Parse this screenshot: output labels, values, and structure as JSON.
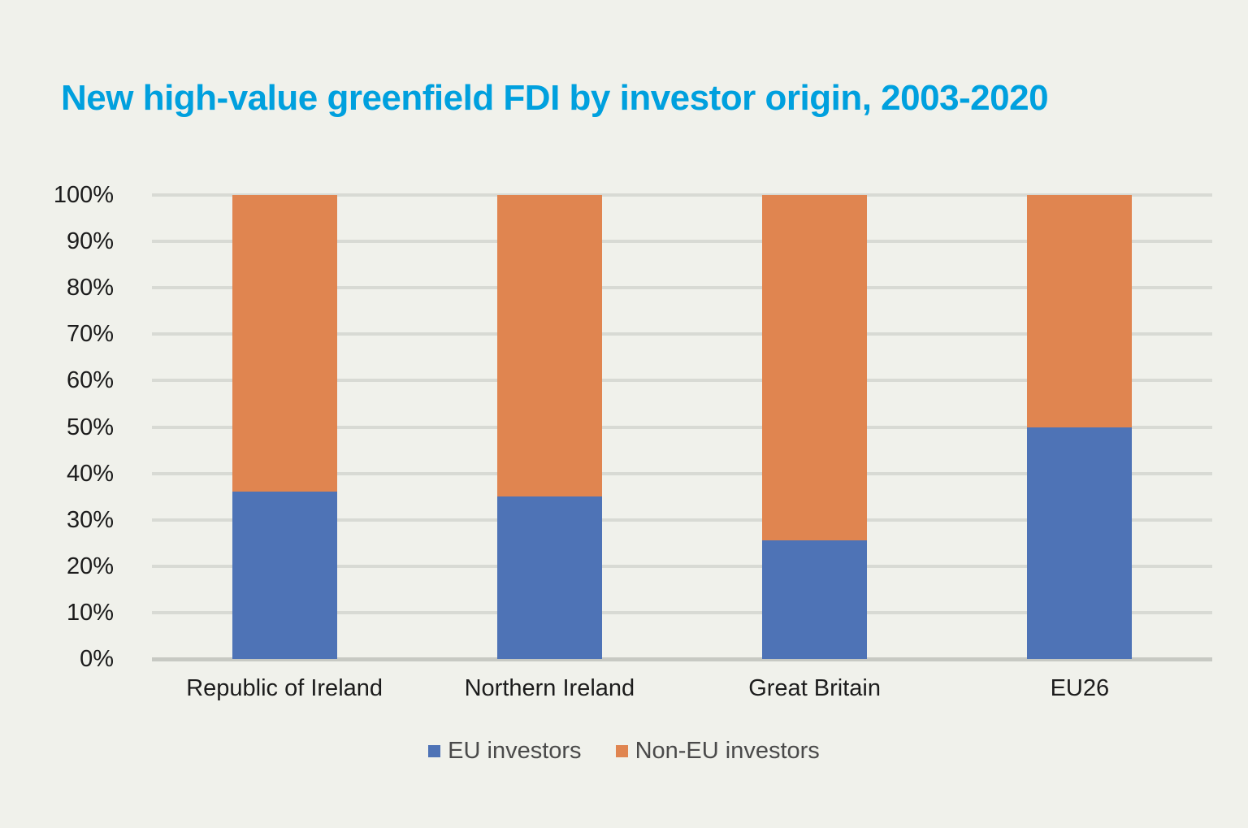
{
  "page": {
    "background_color": "#F0F1EB"
  },
  "chart_data": {
    "type": "bar",
    "stacked": true,
    "title": "New high-value greenfield FDI by investor origin, 2003-2020",
    "title_color": "#00A0DE",
    "categories": [
      "Republic of Ireland",
      "Northern Ireland",
      "Great Britain",
      "EU26"
    ],
    "series": [
      {
        "name": "EU investors",
        "color": "#4E73B6",
        "values": [
          36,
          35,
          25.5,
          50
        ]
      },
      {
        "name": "Non-EU investors",
        "color": "#E08550",
        "values": [
          64,
          65,
          74.5,
          50
        ]
      }
    ],
    "xlabel": "",
    "ylabel": "",
    "ylim": [
      0,
      100
    ],
    "y_ticks": [
      "0%",
      "10%",
      "20%",
      "30%",
      "40%",
      "50%",
      "60%",
      "70%",
      "80%",
      "90%",
      "100%"
    ],
    "unit": "percent",
    "grid": true,
    "legend_position": "bottom",
    "gridline_color": "#D8DAD4",
    "axis_line_color": "#C7C9C3",
    "tick_label_color": "#1C1C1C",
    "legend_text_color": "#4A4A4A"
  }
}
